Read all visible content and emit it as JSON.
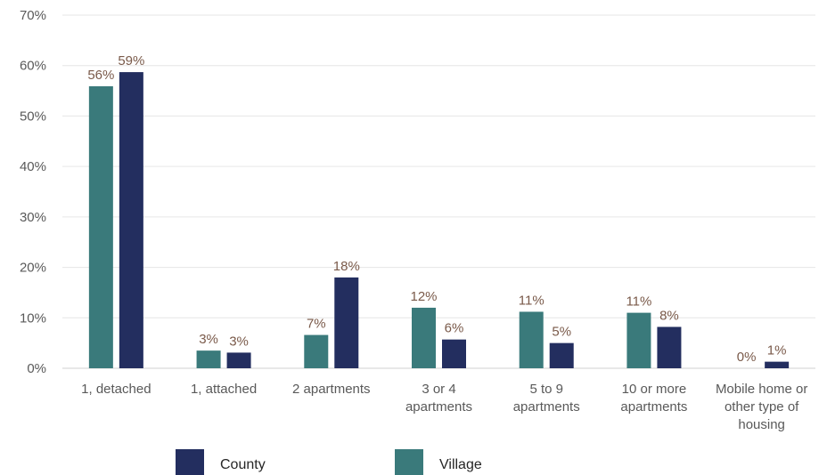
{
  "chart_data": {
    "type": "bar",
    "categories": [
      [
        "1, detached"
      ],
      [
        "1, attached"
      ],
      [
        "2 apartments"
      ],
      [
        "3 or 4",
        "apartments"
      ],
      [
        "5 to 9",
        "apartments"
      ],
      [
        "10 or more",
        "apartments"
      ],
      [
        "Mobile home or",
        "other type of",
        "housing"
      ]
    ],
    "series": [
      {
        "name": "Village",
        "color": "#3a7a7b",
        "values": [
          55.9,
          3.5,
          6.6,
          12.0,
          11.2,
          11.0,
          0.0
        ],
        "labels": [
          "56%",
          "3%",
          "7%",
          "12%",
          "11%",
          "11%",
          "0%"
        ]
      },
      {
        "name": "County",
        "color": "#232e5f",
        "values": [
          58.7,
          3.1,
          18.0,
          5.7,
          5.0,
          8.2,
          1.3
        ],
        "labels": [
          "59%",
          "3%",
          "18%",
          "6%",
          "5%",
          "8%",
          "1%"
        ]
      }
    ],
    "ylim": [
      0,
      70
    ],
    "yticks": [
      "0%",
      "10%",
      "20%",
      "30%",
      "40%",
      "50%",
      "60%",
      "70%"
    ],
    "grid": true,
    "legend": {
      "position": "bottom",
      "entries": [
        "County",
        "Village"
      ]
    },
    "colors": {
      "grid": "#e6e6e6",
      "axis_text": "#595959",
      "data_label": "#7a5a4a"
    }
  }
}
